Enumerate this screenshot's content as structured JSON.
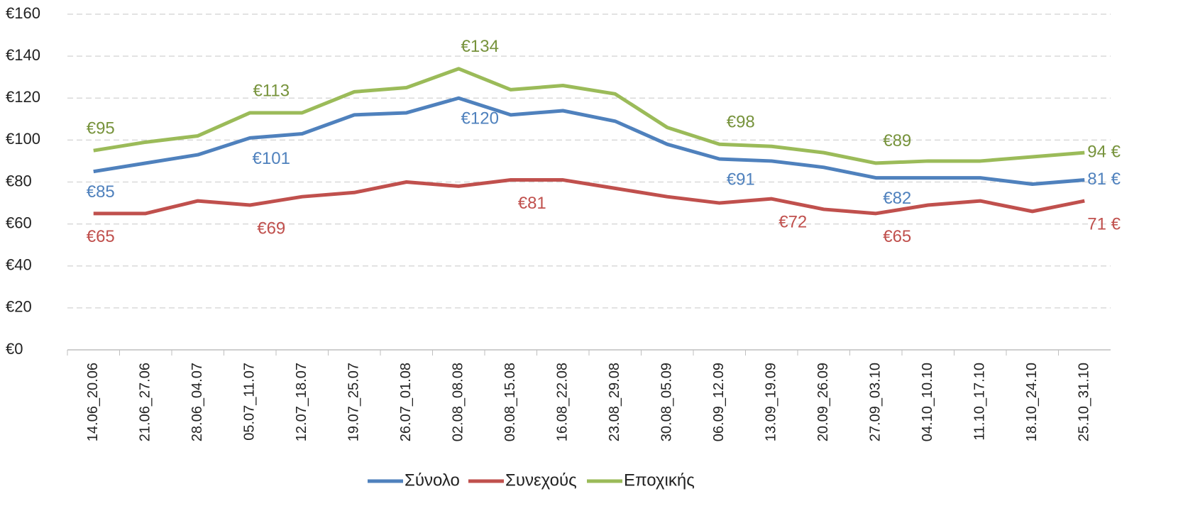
{
  "chart_data": {
    "type": "line",
    "categories": [
      "14.06_20.06",
      "21.06_27.06",
      "28.06_04.07",
      "05.07_11.07",
      "12.07_18.07",
      "19.07_25.07",
      "26.07_01.08",
      "02.08_08.08",
      "09.08_15.08",
      "16.08_22.08",
      "23.08_29.08",
      "30.08_05.09",
      "06.09_12.09",
      "13.09_19.09",
      "20.09_26.09",
      "27.09_03.10",
      "04.10_10.10",
      "11.10_17.10",
      "18.10_24.10",
      "25.10_31.10"
    ],
    "series": [
      {
        "name": "Σύνολο",
        "color": "#4f81bd",
        "label_color": "#4f81bd",
        "values": [
          85,
          89,
          93,
          101,
          103,
          112,
          113,
          120,
          112,
          114,
          109,
          98,
          91,
          90,
          87,
          82,
          82,
          82,
          79,
          81
        ],
        "value_labels": [
          "€85",
          null,
          null,
          "€101",
          null,
          null,
          null,
          "€120",
          null,
          null,
          null,
          null,
          "€91",
          null,
          null,
          "€82",
          null,
          null,
          null,
          "81 €"
        ]
      },
      {
        "name": "Συνεχούς",
        "color": "#c0504d",
        "label_color": "#c0504d",
        "values": [
          65,
          65,
          71,
          69,
          73,
          75,
          80,
          78,
          81,
          81,
          77,
          73,
          70,
          72,
          67,
          65,
          69,
          71,
          66,
          71
        ],
        "value_labels": [
          "€65",
          null,
          null,
          "€69",
          null,
          null,
          null,
          null,
          "€81",
          null,
          null,
          null,
          null,
          "€72",
          null,
          "€65",
          null,
          null,
          null,
          "71 €"
        ]
      },
      {
        "name": "Εποχικής",
        "color": "#9bbb59",
        "label_color": "#77933c",
        "values": [
          95,
          99,
          102,
          113,
          113,
          123,
          125,
          134,
          124,
          126,
          122,
          106,
          98,
          97,
          94,
          89,
          90,
          90,
          92,
          94
        ],
        "value_labels": [
          "€95",
          null,
          null,
          "€113",
          null,
          null,
          null,
          "€134",
          null,
          null,
          null,
          null,
          "€98",
          null,
          null,
          "€89",
          null,
          null,
          null,
          "94 €"
        ]
      }
    ],
    "ylim": [
      0,
      160
    ],
    "yticks": [
      {
        "value": 0,
        "label": "€0"
      },
      {
        "value": 20,
        "label": "€20"
      },
      {
        "value": 40,
        "label": "€40"
      },
      {
        "value": 60,
        "label": "€60"
      },
      {
        "value": 80,
        "label": "€80"
      },
      {
        "value": 100,
        "label": "€100"
      },
      {
        "value": 120,
        "label": "€120"
      },
      {
        "value": 140,
        "label": "€140"
      },
      {
        "value": 160,
        "label": "€160"
      }
    ],
    "grid": true,
    "legend": "bottom"
  }
}
